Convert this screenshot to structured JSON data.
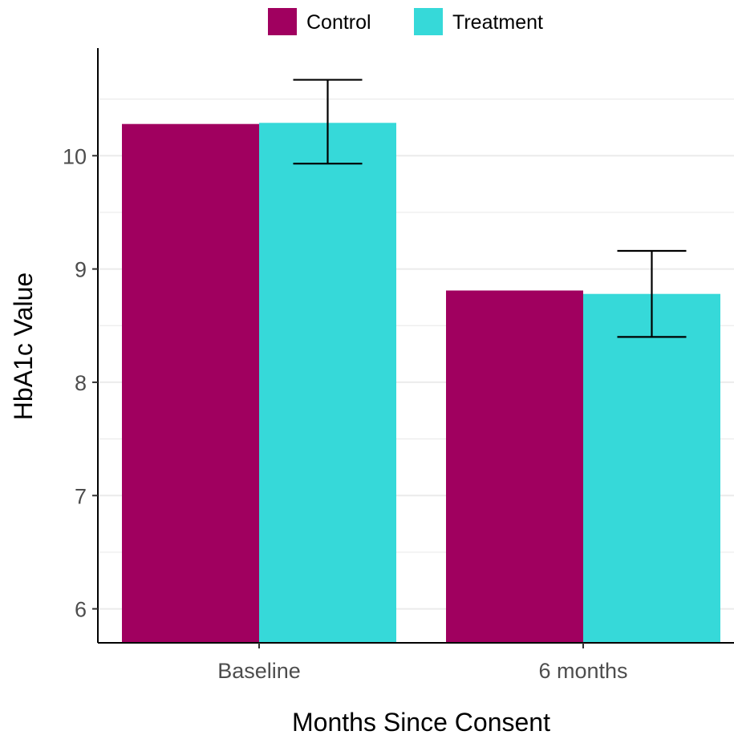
{
  "chart_data": {
    "type": "bar",
    "xlabel": "Months Since Consent",
    "ylabel": "HbA1c Value",
    "categories": [
      "Baseline",
      "6 months"
    ],
    "series": [
      {
        "name": "Control",
        "color": "#A0005F",
        "values": [
          10.28,
          8.81
        ]
      },
      {
        "name": "Treatment",
        "color": "#36D9D9",
        "values": [
          10.29,
          8.78
        ],
        "error_bars": [
          [
            9.93,
            10.67
          ],
          [
            8.4,
            9.16
          ]
        ]
      }
    ],
    "ylim": [
      5.7,
      10.95
    ],
    "yticks": [
      6,
      7,
      8,
      9,
      10
    ],
    "grid": true,
    "legend_position": "top"
  }
}
